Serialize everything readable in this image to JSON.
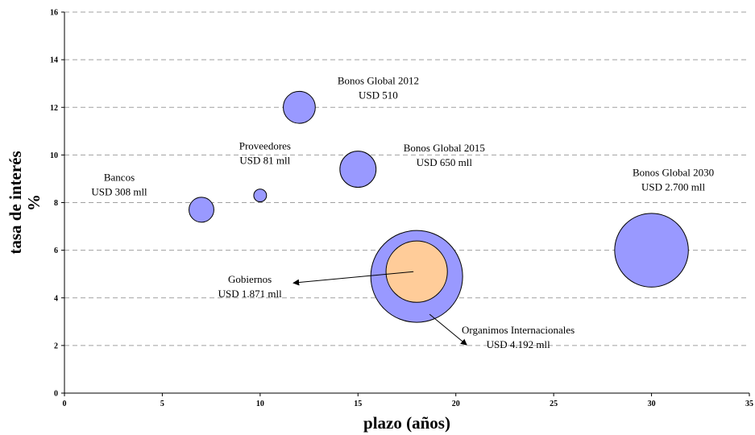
{
  "chart_data": {
    "type": "bubble",
    "xlabel": "plazo (años)",
    "ylabel": "tasa de interés %",
    "xlim": [
      0,
      35
    ],
    "ylim": [
      0,
      16
    ],
    "xticks": [
      0,
      5,
      10,
      15,
      20,
      25,
      30,
      35
    ],
    "yticks": [
      0,
      2,
      4,
      6,
      8,
      10,
      12,
      14,
      16
    ],
    "grid": "horizontal-dashed",
    "series": [
      {
        "points": [
          {
            "x": 7,
            "y": 7.7,
            "size": 308,
            "color": "#9999ff",
            "label": [
              "Bancos",
              "USD 308 mll"
            ]
          },
          {
            "x": 10,
            "y": 8.3,
            "size": 81,
            "color": "#9999ff",
            "label": [
              "Proveedores",
              "USD 81 mll"
            ]
          },
          {
            "x": 12,
            "y": 12,
            "size": 510,
            "color": "#9999ff",
            "label": [
              "Bonos Global 2012",
              "USD 510"
            ]
          },
          {
            "x": 15,
            "y": 9.4,
            "size": 650,
            "color": "#9999ff",
            "label": [
              "Bonos Global 2015",
              "USD 650 mll"
            ]
          },
          {
            "x": 30,
            "y": 6,
            "size": 2700,
            "color": "#9999ff",
            "label": [
              "Bonos Global 2030",
              "USD 2.700 mll"
            ]
          },
          {
            "x": 18,
            "y": 4.9,
            "size": 4192,
            "color": "#9999ff",
            "label": [
              "Organimos Internacionales",
              "USD 4.192 mll"
            ]
          },
          {
            "x": 18,
            "y": 5.1,
            "size": 1871,
            "color": "#ffcc99",
            "label": [
              "Gobiernos",
              "USD 1.871 mll"
            ]
          }
        ]
      }
    ]
  }
}
